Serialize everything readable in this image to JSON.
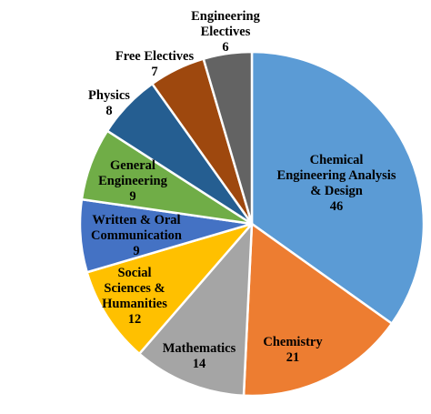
{
  "chart_data": {
    "type": "pie",
    "title": "",
    "start_angle_deg": 0,
    "direction": "clockwise",
    "slices": [
      {
        "label": "Chemical Engineering Analysis & Design",
        "lines": [
          "Chemical",
          "Engineering Analysis",
          "& Design"
        ],
        "value": 46,
        "value_label": "46",
        "color": "#5B9BD5",
        "label_color": "#000000"
      },
      {
        "label": "Chemistry",
        "lines": [
          "Chemistry"
        ],
        "value": 21,
        "value_label": "21",
        "color": "#ED7D31",
        "label_color": "#000000"
      },
      {
        "label": "Mathematics",
        "lines": [
          "Mathematics"
        ],
        "value": 14,
        "value_label": "14",
        "color": "#A5A5A5",
        "label_color": "#000000"
      },
      {
        "label": "Social Sciences & Humanities",
        "lines": [
          "Social",
          "Sciences &",
          "Humanities"
        ],
        "value": 12,
        "value_label": "12",
        "color": "#FFC000",
        "label_color": "#000000"
      },
      {
        "label": "Written & Oral Communication",
        "lines": [
          "Written & Oral",
          "Communication"
        ],
        "value": 9,
        "value_label": "9",
        "color": "#4472C4",
        "label_color": "#000000"
      },
      {
        "label": "General Engineering",
        "lines": [
          "General",
          "Engineering"
        ],
        "value": 9,
        "value_label": "9",
        "color": "#70AD47",
        "label_color": "#000000"
      },
      {
        "label": "Physics",
        "lines": [
          "Physics"
        ],
        "value": 8,
        "value_label": "8",
        "color": "#255E91",
        "label_color": "#000000"
      },
      {
        "label": "Free Electives",
        "lines": [
          "Free Electives"
        ],
        "value": 7,
        "value_label": "7",
        "color": "#9E480E",
        "label_color": "#000000"
      },
      {
        "label": "Engineering Electives",
        "lines": [
          "Engineering",
          "Electives"
        ],
        "value": 6,
        "value_label": "6",
        "color": "#636363",
        "label_color": "#000000"
      }
    ]
  }
}
